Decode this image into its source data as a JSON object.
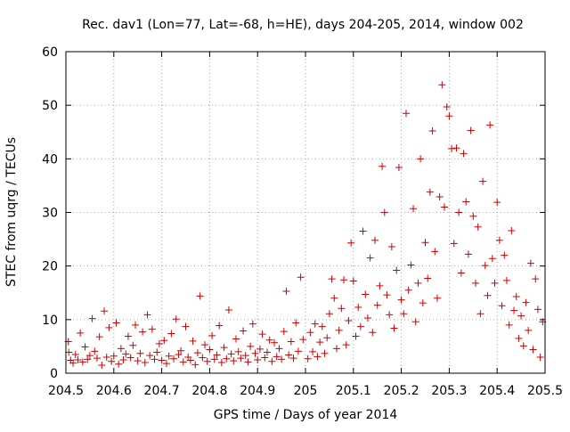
{
  "chart_data": {
    "type": "scatter",
    "title": "Rec. dav1 (Lon=77, Lat=-68, h=HE), days 204-205, 2014, window 002",
    "xlabel": "GPS time / Days of year 2014",
    "ylabel": "STEC from uqrg / TECUs",
    "xlim": [
      204.5,
      205.5
    ],
    "ylim": [
      0,
      60
    ],
    "xticks": [
      204.5,
      204.6,
      204.7,
      204.8,
      204.9,
      205,
      205.1,
      205.2,
      205.3,
      205.4,
      205.5
    ],
    "xtick_labels": [
      "204.5",
      "204.6",
      "204.7",
      "204.8",
      "204.9",
      "205",
      "205.1",
      "205.2",
      "205.3",
      "205.4",
      "205.5"
    ],
    "yticks": [
      0,
      10,
      20,
      30,
      40,
      50,
      60
    ],
    "ytick_labels": [
      "0",
      "10",
      "20",
      "30",
      "40",
      "50",
      "60"
    ],
    "grid": true,
    "marker": "+",
    "color": "#cc0000",
    "series": [
      {
        "points": [
          [
            204.505,
            5.9
          ],
          [
            204.506,
            3.9
          ],
          [
            204.51,
            2.4
          ],
          [
            204.515,
            1.9
          ],
          [
            204.52,
            3.5
          ],
          [
            204.525,
            2.5
          ],
          [
            204.53,
            7.5
          ],
          [
            204.535,
            2.1
          ],
          [
            204.54,
            4.9
          ],
          [
            204.545,
            2.6
          ],
          [
            204.55,
            3.3
          ],
          [
            204.555,
            10.2
          ],
          [
            204.56,
            4.1
          ],
          [
            204.565,
            2.8
          ],
          [
            204.57,
            6.8
          ],
          [
            204.575,
            1.5
          ],
          [
            204.58,
            11.6
          ],
          [
            204.585,
            3.0
          ],
          [
            204.59,
            8.5
          ],
          [
            204.595,
            2.2
          ],
          [
            204.6,
            3.2
          ],
          [
            204.605,
            9.4
          ],
          [
            204.61,
            1.7
          ],
          [
            204.615,
            4.6
          ],
          [
            204.62,
            2.5
          ],
          [
            204.625,
            3.6
          ],
          [
            204.63,
            6.9
          ],
          [
            204.635,
            2.9
          ],
          [
            204.64,
            5.2
          ],
          [
            204.645,
            9.0
          ],
          [
            204.65,
            2.3
          ],
          [
            204.655,
            3.7
          ],
          [
            204.66,
            7.7
          ],
          [
            204.665,
            2.0
          ],
          [
            204.67,
            10.9
          ],
          [
            204.675,
            3.3
          ],
          [
            204.68,
            8.2
          ],
          [
            204.685,
            2.6
          ],
          [
            204.69,
            3.9
          ],
          [
            204.695,
            5.5
          ],
          [
            204.7,
            2.4
          ],
          [
            204.705,
            6.1
          ],
          [
            204.71,
            1.8
          ],
          [
            204.715,
            3.2
          ],
          [
            204.72,
            7.4
          ],
          [
            204.725,
            2.7
          ],
          [
            204.73,
            10.1
          ],
          [
            204.735,
            3.5
          ],
          [
            204.74,
            4.2
          ],
          [
            204.745,
            2.1
          ],
          [
            204.75,
            8.7
          ],
          [
            204.755,
            3.0
          ],
          [
            204.76,
            2.4
          ],
          [
            204.765,
            6.0
          ],
          [
            204.77,
            1.6
          ],
          [
            204.775,
            3.8
          ],
          [
            204.78,
            14.4
          ],
          [
            204.785,
            2.9
          ],
          [
            204.79,
            5.3
          ],
          [
            204.795,
            2.2
          ],
          [
            204.8,
            4.4
          ],
          [
            204.805,
            7.0
          ],
          [
            204.81,
            2.6
          ],
          [
            204.815,
            3.4
          ],
          [
            204.82,
            8.9
          ],
          [
            204.825,
            2.0
          ],
          [
            204.83,
            4.8
          ],
          [
            204.835,
            2.7
          ],
          [
            204.84,
            11.8
          ],
          [
            204.845,
            3.6
          ],
          [
            204.85,
            2.3
          ],
          [
            204.855,
            6.4
          ],
          [
            204.86,
            4.0
          ],
          [
            204.865,
            2.8
          ],
          [
            204.87,
            7.9
          ],
          [
            204.875,
            3.3
          ],
          [
            204.88,
            2.1
          ],
          [
            204.885,
            5.0
          ],
          [
            204.89,
            9.2
          ],
          [
            204.895,
            3.7
          ],
          [
            204.9,
            2.5
          ],
          [
            204.905,
            4.5
          ],
          [
            204.91,
            7.3
          ],
          [
            204.915,
            2.9
          ],
          [
            204.92,
            3.9
          ],
          [
            204.925,
            6.2
          ],
          [
            204.93,
            2.2
          ],
          [
            204.935,
            5.7
          ],
          [
            204.94,
            3.1
          ],
          [
            204.945,
            4.6
          ],
          [
            204.95,
            2.6
          ],
          [
            204.955,
            7.8
          ],
          [
            204.96,
            15.3
          ],
          [
            204.965,
            3.4
          ],
          [
            204.97,
            5.9
          ],
          [
            204.975,
            2.8
          ],
          [
            204.98,
            9.4
          ],
          [
            204.985,
            4.1
          ],
          [
            204.99,
            17.9
          ],
          [
            204.995,
            6.3
          ],
          [
            205.005,
            2.7
          ],
          [
            205.01,
            7.6
          ],
          [
            205.015,
            4.0
          ],
          [
            205.02,
            9.2
          ],
          [
            205.025,
            3.1
          ],
          [
            205.03,
            5.8
          ],
          [
            205.035,
            8.7
          ],
          [
            205.04,
            3.7
          ],
          [
            205.045,
            6.6
          ],
          [
            205.05,
            11.1
          ],
          [
            205.055,
            17.6
          ],
          [
            205.06,
            14.0
          ],
          [
            205.065,
            4.6
          ],
          [
            205.07,
            8.0
          ],
          [
            205.075,
            12.1
          ],
          [
            205.08,
            17.4
          ],
          [
            205.085,
            5.3
          ],
          [
            205.09,
            9.8
          ],
          [
            205.095,
            24.3
          ],
          [
            205.1,
            17.2
          ],
          [
            205.105,
            6.9
          ],
          [
            205.11,
            12.3
          ],
          [
            205.115,
            8.7
          ],
          [
            205.12,
            26.5
          ],
          [
            205.125,
            14.7
          ],
          [
            205.13,
            10.3
          ],
          [
            205.135,
            21.5
          ],
          [
            205.14,
            7.6
          ],
          [
            205.145,
            24.8
          ],
          [
            205.15,
            12.7
          ],
          [
            205.155,
            16.3
          ],
          [
            205.16,
            38.6
          ],
          [
            205.165,
            30.0
          ],
          [
            205.17,
            14.6
          ],
          [
            205.175,
            10.9
          ],
          [
            205.18,
            23.6
          ],
          [
            205.185,
            8.4
          ],
          [
            205.19,
            19.2
          ],
          [
            205.195,
            38.4
          ],
          [
            205.2,
            13.7
          ],
          [
            205.205,
            11.1
          ],
          [
            205.21,
            48.5
          ],
          [
            205.215,
            15.5
          ],
          [
            205.22,
            20.2
          ],
          [
            205.225,
            30.7
          ],
          [
            205.23,
            9.6
          ],
          [
            205.235,
            16.8
          ],
          [
            205.24,
            40.0
          ],
          [
            205.245,
            13.1
          ],
          [
            205.25,
            24.4
          ],
          [
            205.255,
            17.7
          ],
          [
            205.26,
            33.8
          ],
          [
            205.265,
            45.2
          ],
          [
            205.27,
            22.7
          ],
          [
            205.275,
            14.0
          ],
          [
            205.28,
            32.9
          ],
          [
            205.285,
            53.8
          ],
          [
            205.29,
            31.0
          ],
          [
            205.295,
            49.7
          ],
          [
            205.3,
            48.0
          ],
          [
            205.305,
            41.9
          ],
          [
            205.31,
            24.2
          ],
          [
            205.315,
            42.0
          ],
          [
            205.32,
            30.0
          ],
          [
            205.325,
            18.7
          ],
          [
            205.33,
            41.0
          ],
          [
            205.335,
            32.0
          ],
          [
            205.34,
            22.2
          ],
          [
            205.345,
            45.3
          ],
          [
            205.35,
            29.3
          ],
          [
            205.355,
            16.8
          ],
          [
            205.36,
            27.3
          ],
          [
            205.365,
            11.1
          ],
          [
            205.37,
            35.8
          ],
          [
            205.375,
            20.1
          ],
          [
            205.38,
            14.5
          ],
          [
            205.385,
            46.3
          ],
          [
            205.39,
            21.4
          ],
          [
            205.395,
            16.8
          ],
          [
            205.4,
            31.9
          ],
          [
            205.405,
            24.8
          ],
          [
            205.41,
            12.6
          ],
          [
            205.415,
            22.0
          ],
          [
            205.42,
            17.3
          ],
          [
            205.425,
            9.0
          ],
          [
            205.43,
            26.6
          ],
          [
            205.435,
            11.7
          ],
          [
            205.44,
            14.3
          ],
          [
            205.445,
            6.5
          ],
          [
            205.45,
            10.7
          ],
          [
            205.455,
            5.1
          ],
          [
            205.46,
            13.2
          ],
          [
            205.465,
            8.0
          ],
          [
            205.47,
            20.5
          ],
          [
            205.475,
            4.4
          ],
          [
            205.48,
            17.6
          ],
          [
            205.485,
            11.9
          ],
          [
            205.49,
            3.0
          ],
          [
            205.495,
            9.6
          ]
        ]
      }
    ]
  }
}
